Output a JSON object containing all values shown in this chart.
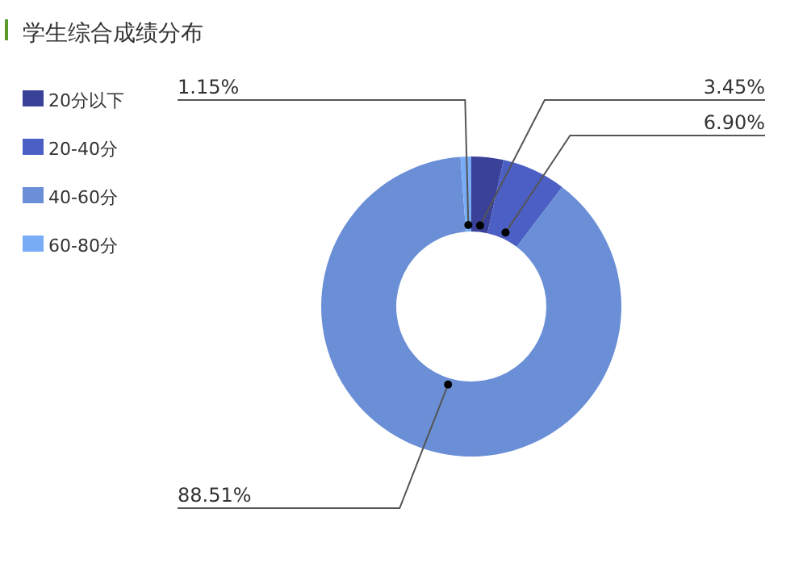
{
  "chart_data": {
    "type": "donut",
    "title": "学生综合成绩分布",
    "categories": [
      "20分以下",
      "20-40分",
      "40-60分",
      "60-80分"
    ],
    "values": [
      3.45,
      6.9,
      88.51,
      1.15
    ],
    "colors": [
      "#3a4199",
      "#4b5fc4",
      "#6a8fd7",
      "#78acf7"
    ],
    "value_labels": [
      "3.45%",
      "6.90%",
      "88.51%",
      "1.15%"
    ],
    "legend": "left"
  }
}
